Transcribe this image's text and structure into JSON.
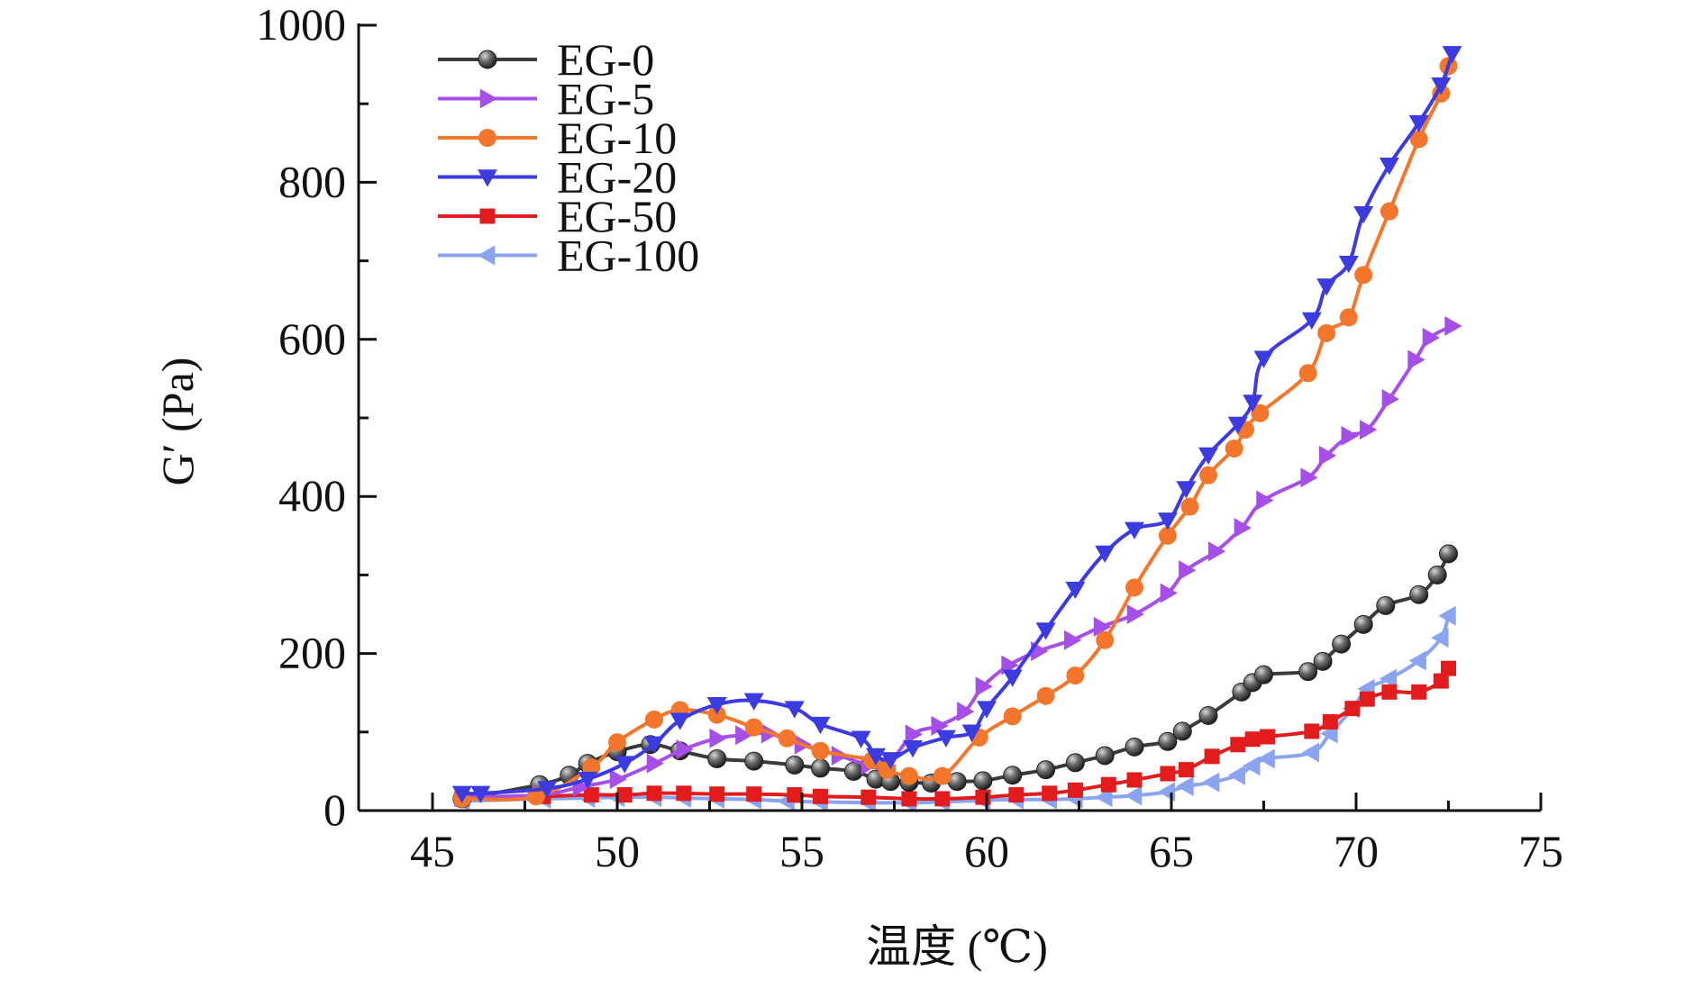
{
  "chart_data": {
    "type": "line",
    "title": "",
    "xlabel": "温度 (℃)",
    "ylabel": "G′ (Pa)",
    "xlim": [
      43,
      75
    ],
    "ylim": [
      0,
      1000
    ],
    "xticks": [
      45,
      50,
      55,
      60,
      65,
      70,
      75
    ],
    "yticks": [
      0,
      200,
      400,
      600,
      800,
      1000
    ],
    "grid": false,
    "legend": "top-left",
    "series": [
      {
        "name": "EG-0",
        "color": "#3a3a3a",
        "marker": "sphere",
        "points": [
          [
            45.8,
            15
          ],
          [
            47.9,
            33
          ],
          [
            48.7,
            45
          ],
          [
            49.2,
            60
          ],
          [
            50.0,
            75
          ],
          [
            50.9,
            84
          ],
          [
            51.7,
            76
          ],
          [
            52.7,
            66
          ],
          [
            53.7,
            63
          ],
          [
            54.8,
            58
          ],
          [
            55.5,
            54
          ],
          [
            56.4,
            50
          ],
          [
            57.0,
            40
          ],
          [
            57.4,
            37
          ],
          [
            57.9,
            36
          ],
          [
            58.5,
            35
          ],
          [
            59.2,
            37
          ],
          [
            59.9,
            38
          ],
          [
            60.7,
            45
          ],
          [
            61.6,
            52
          ],
          [
            62.4,
            61
          ],
          [
            63.2,
            70
          ],
          [
            64.0,
            81
          ],
          [
            64.9,
            88
          ],
          [
            65.3,
            101
          ],
          [
            66.0,
            121
          ],
          [
            66.9,
            151
          ],
          [
            67.2,
            163
          ],
          [
            67.5,
            173
          ],
          [
            68.7,
            177
          ],
          [
            69.1,
            190
          ],
          [
            69.6,
            212
          ],
          [
            70.2,
            237
          ],
          [
            70.8,
            261
          ],
          [
            71.7,
            275
          ],
          [
            72.2,
            300
          ],
          [
            72.5,
            327
          ]
        ]
      },
      {
        "name": "EG-5",
        "color": "#a54ee8",
        "marker": "triangle-right",
        "points": [
          [
            45.8,
            17
          ],
          [
            47.9,
            20
          ],
          [
            49.0,
            30
          ],
          [
            50.0,
            40
          ],
          [
            51.0,
            60
          ],
          [
            51.8,
            78
          ],
          [
            52.7,
            92
          ],
          [
            53.4,
            96
          ],
          [
            54.1,
            98
          ],
          [
            55.0,
            84
          ],
          [
            56.0,
            70
          ],
          [
            56.8,
            58
          ],
          [
            57.3,
            57
          ],
          [
            58.0,
            97
          ],
          [
            58.7,
            108
          ],
          [
            59.4,
            126
          ],
          [
            59.9,
            158
          ],
          [
            60.6,
            185
          ],
          [
            61.4,
            203
          ],
          [
            62.3,
            217
          ],
          [
            63.1,
            234
          ],
          [
            64.0,
            250
          ],
          [
            64.9,
            277
          ],
          [
            65.4,
            306
          ],
          [
            66.2,
            330
          ],
          [
            66.9,
            360
          ],
          [
            67.5,
            395
          ],
          [
            68.7,
            424
          ],
          [
            69.2,
            452
          ],
          [
            69.8,
            477
          ],
          [
            70.3,
            485
          ],
          [
            70.9,
            524
          ],
          [
            71.6,
            574
          ],
          [
            72.0,
            602
          ],
          [
            72.6,
            617
          ]
        ]
      },
      {
        "name": "EG-10",
        "color": "#f2762c",
        "marker": "circle",
        "points": [
          [
            45.8,
            15
          ],
          [
            47.8,
            18
          ],
          [
            49.3,
            55
          ],
          [
            50.0,
            87
          ],
          [
            51.0,
            116
          ],
          [
            51.7,
            128
          ],
          [
            52.7,
            122
          ],
          [
            53.7,
            106
          ],
          [
            54.6,
            92
          ],
          [
            55.5,
            76
          ],
          [
            56.9,
            64
          ],
          [
            57.3,
            52
          ],
          [
            57.9,
            44
          ],
          [
            58.8,
            44
          ],
          [
            59.8,
            93
          ],
          [
            60.7,
            120
          ],
          [
            61.6,
            146
          ],
          [
            62.4,
            172
          ],
          [
            63.2,
            217
          ],
          [
            64.0,
            284
          ],
          [
            64.9,
            350
          ],
          [
            65.5,
            387
          ],
          [
            66.0,
            427
          ],
          [
            66.7,
            461
          ],
          [
            67.0,
            485
          ],
          [
            67.4,
            506
          ],
          [
            68.7,
            557
          ],
          [
            69.2,
            608
          ],
          [
            69.8,
            628
          ],
          [
            70.2,
            682
          ],
          [
            70.9,
            763
          ],
          [
            71.7,
            855
          ],
          [
            72.3,
            913
          ],
          [
            72.5,
            948
          ]
        ]
      },
      {
        "name": "EG-20",
        "color": "#3c3be0",
        "marker": "triangle-down",
        "points": [
          [
            45.8,
            22
          ],
          [
            46.3,
            22
          ],
          [
            48.1,
            28
          ],
          [
            49.2,
            40
          ],
          [
            50.2,
            60
          ],
          [
            51.0,
            85
          ],
          [
            51.7,
            115
          ],
          [
            52.7,
            135
          ],
          [
            53.7,
            140
          ],
          [
            54.8,
            130
          ],
          [
            55.5,
            110
          ],
          [
            56.6,
            92
          ],
          [
            57.0,
            70
          ],
          [
            57.4,
            65
          ],
          [
            58.0,
            80
          ],
          [
            58.9,
            93
          ],
          [
            59.6,
            100
          ],
          [
            60.0,
            130
          ],
          [
            60.7,
            170
          ],
          [
            61.6,
            230
          ],
          [
            62.4,
            282
          ],
          [
            63.2,
            328
          ],
          [
            64.0,
            358
          ],
          [
            64.9,
            370
          ],
          [
            65.4,
            410
          ],
          [
            66.0,
            453
          ],
          [
            66.8,
            492
          ],
          [
            67.2,
            520
          ],
          [
            67.5,
            576
          ],
          [
            68.8,
            625
          ],
          [
            69.2,
            668
          ],
          [
            69.8,
            697
          ],
          [
            70.2,
            760
          ],
          [
            70.9,
            822
          ],
          [
            71.7,
            876
          ],
          [
            72.3,
            924
          ],
          [
            72.6,
            964
          ]
        ]
      },
      {
        "name": "EG-50",
        "color": "#e21c1c",
        "marker": "square",
        "points": [
          [
            45.8,
            15
          ],
          [
            48.0,
            18
          ],
          [
            49.3,
            20
          ],
          [
            50.2,
            20
          ],
          [
            51.0,
            22
          ],
          [
            51.8,
            22
          ],
          [
            52.7,
            21
          ],
          [
            53.7,
            21
          ],
          [
            54.8,
            20
          ],
          [
            55.5,
            18
          ],
          [
            56.8,
            17
          ],
          [
            57.9,
            15
          ],
          [
            58.8,
            15
          ],
          [
            59.9,
            17
          ],
          [
            60.8,
            20
          ],
          [
            61.7,
            22
          ],
          [
            62.4,
            26
          ],
          [
            63.3,
            33
          ],
          [
            64.0,
            39
          ],
          [
            64.9,
            47
          ],
          [
            65.4,
            52
          ],
          [
            66.1,
            69
          ],
          [
            66.8,
            84
          ],
          [
            67.2,
            91
          ],
          [
            67.6,
            94
          ],
          [
            68.8,
            101
          ],
          [
            69.3,
            113
          ],
          [
            69.9,
            130
          ],
          [
            70.3,
            142
          ],
          [
            70.9,
            151
          ],
          [
            71.7,
            151
          ],
          [
            72.3,
            165
          ],
          [
            72.5,
            181
          ]
        ]
      },
      {
        "name": "EG-100",
        "color": "#8aa4f0",
        "marker": "triangle-left",
        "points": [
          [
            45.8,
            12
          ],
          [
            48.0,
            15
          ],
          [
            49.2,
            16
          ],
          [
            50.0,
            17
          ],
          [
            51.0,
            17
          ],
          [
            51.8,
            16
          ],
          [
            52.7,
            15
          ],
          [
            53.7,
            14
          ],
          [
            54.6,
            12
          ],
          [
            55.5,
            11
          ],
          [
            56.8,
            10
          ],
          [
            57.9,
            10
          ],
          [
            58.8,
            11
          ],
          [
            59.9,
            13
          ],
          [
            60.8,
            14
          ],
          [
            61.7,
            14
          ],
          [
            62.4,
            15
          ],
          [
            63.2,
            17
          ],
          [
            64.0,
            19
          ],
          [
            64.9,
            24
          ],
          [
            65.4,
            31
          ],
          [
            66.1,
            36
          ],
          [
            66.8,
            45
          ],
          [
            67.2,
            57
          ],
          [
            67.6,
            66
          ],
          [
            68.8,
            74
          ],
          [
            69.3,
            98
          ],
          [
            69.9,
            130
          ],
          [
            70.3,
            155
          ],
          [
            70.9,
            168
          ],
          [
            71.7,
            191
          ],
          [
            72.3,
            220
          ],
          [
            72.5,
            248
          ]
        ]
      }
    ]
  }
}
